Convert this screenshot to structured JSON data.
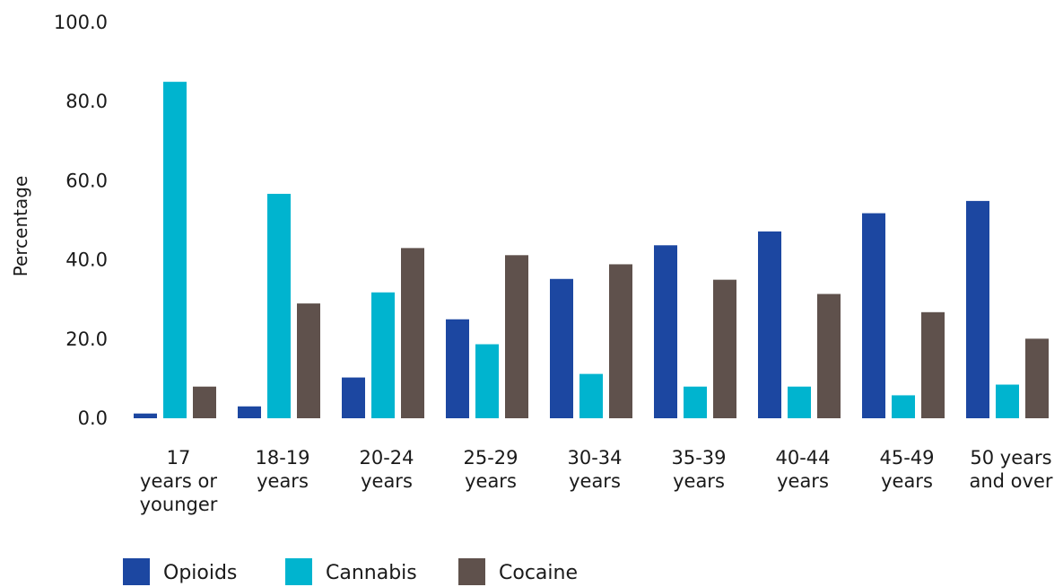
{
  "chart_data": {
    "type": "bar",
    "title": "",
    "xlabel": "",
    "ylabel": "Percentage",
    "ylim": [
      0,
      100
    ],
    "yticks": [
      "0.0",
      "20.0",
      "40.0",
      "60.0",
      "80.0",
      "100.0"
    ],
    "grid": false,
    "legend_position": "bottom-left",
    "categories": [
      [
        "17",
        "years or",
        "younger"
      ],
      [
        "18-19",
        "years"
      ],
      [
        "20-24",
        "years"
      ],
      [
        "25-29",
        "years"
      ],
      [
        "30-34",
        "years"
      ],
      [
        "35-39",
        "years"
      ],
      [
        "40-44",
        "years"
      ],
      [
        "45-49",
        "years"
      ],
      [
        "50 years",
        "and over"
      ]
    ],
    "series": [
      {
        "name": "Opioids",
        "color": "#1c47a1",
        "values": [
          1.2,
          3.0,
          10.3,
          25.0,
          35.2,
          43.7,
          47.2,
          51.8,
          54.9
        ]
      },
      {
        "name": "Cannabis",
        "color": "#00b4cf",
        "values": [
          85.0,
          56.7,
          31.8,
          18.7,
          11.2,
          8.0,
          8.0,
          5.8,
          8.5
        ]
      },
      {
        "name": "Cocaine",
        "color": "#5f514c",
        "values": [
          8.0,
          29.0,
          43.0,
          41.2,
          38.9,
          35.0,
          31.4,
          26.8,
          20.1
        ]
      }
    ]
  }
}
